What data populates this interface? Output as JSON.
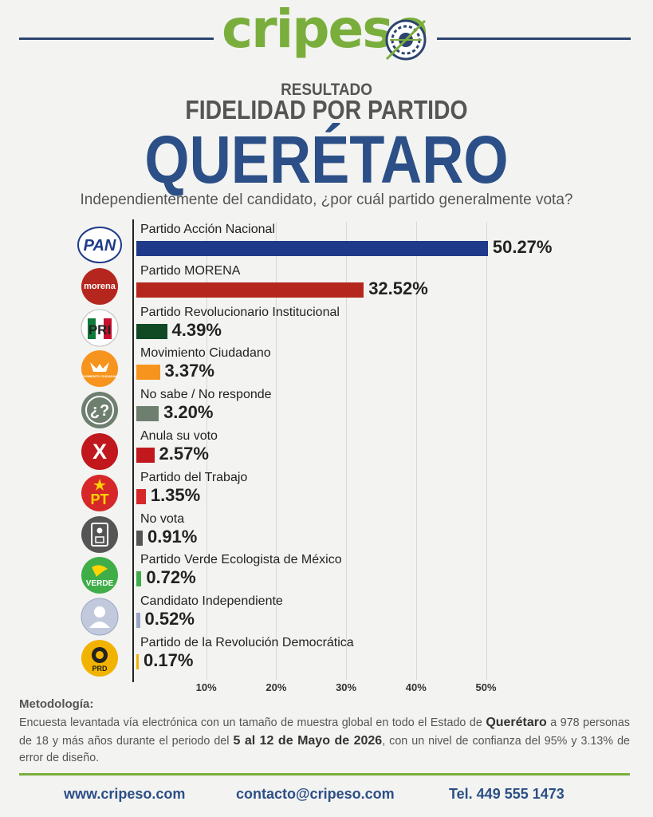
{
  "brand": {
    "logo_text": "cripeso"
  },
  "header": {
    "pretitle": "RESULTADO",
    "title": "FIDELIDAD POR PARTIDO",
    "state": "QUERÉTARO",
    "question": "Independientemente del candidato, ¿por cuál partido generalmente vota?"
  },
  "chart_data": {
    "type": "bar",
    "orientation": "horizontal",
    "categories": [
      "Partido Acción Nacional",
      "Partido MORENA",
      "Partido Revolucionario Institucional",
      "Movimiento Ciudadano",
      "No sabe / No responde",
      "Anula su voto",
      "Partido del Trabajo",
      "No vota",
      "Partido Verde Ecologista de México",
      "Candidato Independiente",
      "Partido de la Revolución Democrática"
    ],
    "values": [
      50.27,
      32.52,
      4.39,
      3.37,
      3.2,
      2.57,
      1.35,
      0.91,
      0.72,
      0.52,
      0.17
    ],
    "value_labels": [
      "50.27%",
      "32.52%",
      "4.39%",
      "3.37%",
      "3.20%",
      "2.57%",
      "1.35%",
      "0.91%",
      "0.72%",
      "0.52%",
      "0.17%"
    ],
    "colors": [
      "#1f3a8a",
      "#b5271e",
      "#0f4a25",
      "#f7941d",
      "#6e7f70",
      "#c0181c",
      "#d62828",
      "#555555",
      "#3fae49",
      "#9aa6c7",
      "#f2b300"
    ],
    "icons": [
      {
        "name": "pan-logo-icon",
        "text": "PAN"
      },
      {
        "name": "morena-logo-icon",
        "text": "morena"
      },
      {
        "name": "pri-logo-icon",
        "text": "PRI"
      },
      {
        "name": "mc-logo-icon",
        "text": "MOVIMIENTO CIUDADANO"
      },
      {
        "name": "question-icon",
        "text": "¿?"
      },
      {
        "name": "cross-icon",
        "text": "X"
      },
      {
        "name": "pt-logo-icon",
        "text": "PT"
      },
      {
        "name": "ballot-icon",
        "text": ""
      },
      {
        "name": "verde-logo-icon",
        "text": "VERDE"
      },
      {
        "name": "person-icon",
        "text": ""
      },
      {
        "name": "prd-logo-icon",
        "text": "PRD"
      }
    ],
    "xticks": [
      10,
      20,
      30,
      40,
      50
    ],
    "xtick_labels": [
      "10%",
      "20%",
      "30%",
      "40%",
      "50%"
    ],
    "xlim": [
      0,
      50
    ],
    "grid": true
  },
  "methodology": {
    "title": "Metodología:",
    "text_1": "Encuesta levantada vía electrónica con un tamaño de muestra global en todo el Estado de",
    "state": "Querétaro",
    "text_2": " a 978 personas de 18 y más años durante el periodo del ",
    "period": "5 al 12 de Mayo de 2026",
    "text_3": ", con un nivel de confianza del 95% y 3.13% de error de diseño."
  },
  "footer": {
    "website": "www.cripeso.com",
    "email": "contacto@cripeso.com",
    "phone": "Tel. 449 555 1473"
  }
}
